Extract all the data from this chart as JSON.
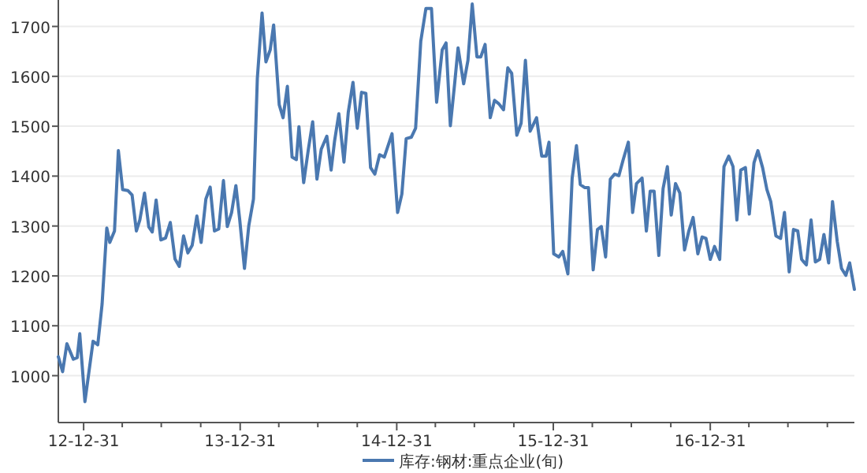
{
  "chart_data": {
    "type": "line",
    "x": [
      "2012-11-02",
      "2012-11-12",
      "2012-11-22",
      "2012-12-07",
      "2012-12-16",
      "2012-12-22",
      "2013-01-03",
      "2013-01-22",
      "2013-02-02",
      "2013-02-12",
      "2013-02-23",
      "2013-03-02",
      "2013-03-13",
      "2013-03-22",
      "2013-04-01",
      "2013-04-13",
      "2013-04-23",
      "2013-05-03",
      "2013-05-11",
      "2013-05-22",
      "2013-06-01",
      "2013-06-09",
      "2013-06-18",
      "2013-06-29",
      "2013-07-10",
      "2013-07-21",
      "2013-08-01",
      "2013-08-11",
      "2013-08-21",
      "2013-08-31",
      "2013-09-10",
      "2013-09-21",
      "2013-10-01",
      "2013-10-12",
      "2013-10-22",
      "2013-11-01",
      "2013-11-11",
      "2013-11-22",
      "2013-12-01",
      "2013-12-11",
      "2013-12-21",
      "2013-12-30",
      "2014-01-10",
      "2014-01-20",
      "2014-01-31",
      "2014-02-09",
      "2014-02-20",
      "2014-03-01",
      "2014-03-11",
      "2014-03-19",
      "2014-04-01",
      "2014-04-10",
      "2014-04-20",
      "2014-05-01",
      "2014-05-11",
      "2014-05-17",
      "2014-05-28",
      "2014-06-08",
      "2014-06-18",
      "2014-06-28",
      "2014-07-08",
      "2014-07-21",
      "2014-07-31",
      "2014-08-08",
      "2014-08-18",
      "2014-08-30",
      "2014-09-09",
      "2014-09-20",
      "2014-09-30",
      "2014-10-10",
      "2014-10-20",
      "2014-10-31",
      "2014-11-10",
      "2014-11-21",
      "2014-12-02",
      "2014-12-20",
      "2015-01-02",
      "2015-01-12",
      "2015-01-22",
      "2015-02-03",
      "2015-02-13",
      "2015-02-25",
      "2015-03-09",
      "2015-03-22",
      "2015-04-03",
      "2015-04-16",
      "2015-04-25",
      "2015-05-05",
      "2015-05-15",
      "2015-05-23",
      "2015-06-05",
      "2015-06-15",
      "2015-06-25",
      "2015-07-06",
      "2015-07-15",
      "2015-07-25",
      "2015-08-06",
      "2015-08-16",
      "2015-08-26",
      "2015-09-06",
      "2015-09-16",
      "2015-09-25",
      "2015-10-07",
      "2015-10-17",
      "2015-10-27",
      "2015-11-07",
      "2015-11-22",
      "2015-12-04",
      "2015-12-14",
      "2015-12-21",
      "2016-01-01",
      "2016-01-13",
      "2016-01-22",
      "2016-02-03",
      "2016-02-13",
      "2016-02-23",
      "2016-03-03",
      "2016-03-13",
      "2016-03-22",
      "2016-04-02",
      "2016-04-12",
      "2016-04-21",
      "2016-05-01",
      "2016-05-12",
      "2016-05-22",
      "2016-06-01",
      "2016-06-11",
      "2016-06-23",
      "2016-07-03",
      "2016-07-12",
      "2016-07-25",
      "2016-08-04",
      "2016-08-13",
      "2016-08-22",
      "2016-09-02",
      "2016-09-12",
      "2016-09-22",
      "2016-10-01",
      "2016-10-11",
      "2016-10-21",
      "2016-11-01",
      "2016-11-11",
      "2016-11-21",
      "2016-12-02",
      "2016-12-12",
      "2016-12-21",
      "2016-12-31",
      "2017-01-10",
      "2017-01-22",
      "2017-02-01",
      "2017-02-12",
      "2017-02-22",
      "2017-03-03",
      "2017-03-12",
      "2017-03-23",
      "2017-04-01",
      "2017-04-12",
      "2017-04-21",
      "2017-05-02",
      "2017-05-12",
      "2017-05-21",
      "2017-06-02",
      "2017-06-13",
      "2017-06-22",
      "2017-07-03",
      "2017-07-13",
      "2017-07-23",
      "2017-08-01",
      "2017-08-12",
      "2017-08-23",
      "2017-09-02",
      "2017-09-12",
      "2017-09-22",
      "2017-10-03",
      "2017-10-12",
      "2017-10-23",
      "2017-11-02",
      "2017-11-12",
      "2017-11-21",
      "2017-12-02"
    ],
    "series": [
      {
        "name": "库存:钢材:重点企业(旬)",
        "color": "#4a78b0",
        "values": [
          1038,
          1008,
          1064,
          1033,
          1036,
          1084,
          948,
          1069,
          1062,
          1143,
          1296,
          1267,
          1290,
          1451,
          1373,
          1371,
          1362,
          1290,
          1312,
          1366,
          1298,
          1288,
          1352,
          1272,
          1276,
          1307,
          1234,
          1219,
          1280,
          1246,
          1261,
          1320,
          1267,
          1354,
          1378,
          1290,
          1294,
          1391,
          1299,
          1327,
          1381,
          1312,
          1215,
          1300,
          1354,
          1596,
          1727,
          1629,
          1653,
          1703,
          1543,
          1517,
          1580,
          1438,
          1433,
          1499,
          1387,
          1454,
          1509,
          1394,
          1454,
          1480,
          1412,
          1470,
          1525,
          1428,
          1528,
          1588,
          1496,
          1568,
          1566,
          1417,
          1404,
          1443,
          1438,
          1485,
          1327,
          1364,
          1475,
          1478,
          1496,
          1670,
          1736,
          1736,
          1548,
          1653,
          1667,
          1501,
          1585,
          1657,
          1585,
          1632,
          1745,
          1639,
          1639,
          1664,
          1517,
          1552,
          1545,
          1533,
          1617,
          1606,
          1482,
          1506,
          1632,
          1490,
          1517,
          1440,
          1440,
          1468,
          1244,
          1238,
          1249,
          1204,
          1396,
          1461,
          1383,
          1377,
          1377,
          1212,
          1293,
          1299,
          1238,
          1394,
          1404,
          1401,
          1433,
          1468,
          1327,
          1385,
          1396,
          1290,
          1370,
          1370,
          1241,
          1375,
          1419,
          1322,
          1385,
          1366,
          1252,
          1290,
          1317,
          1244,
          1278,
          1275,
          1233,
          1259,
          1233,
          1419,
          1440,
          1419,
          1312,
          1412,
          1417,
          1324,
          1427,
          1451,
          1417,
          1373,
          1349,
          1280,
          1275,
          1327,
          1208,
          1293,
          1290,
          1233,
          1222,
          1312,
          1228,
          1233,
          1283,
          1226,
          1349,
          1269,
          1215,
          1201,
          1226,
          1173
        ]
      }
    ],
    "xlim": [
      "2012-11-02",
      "2017-12-02"
    ],
    "ylim": [
      906,
      1753
    ],
    "xticks": [
      {
        "value": "2012-12-31",
        "label": "12-12-31"
      },
      {
        "value": "2013-03-31",
        "label": null
      },
      {
        "value": "2013-06-30",
        "label": null
      },
      {
        "value": "2013-09-30",
        "label": null
      },
      {
        "value": "2013-12-31",
        "label": "13-12-31"
      },
      {
        "value": "2014-03-31",
        "label": null
      },
      {
        "value": "2014-06-30",
        "label": null
      },
      {
        "value": "2014-09-30",
        "label": null
      },
      {
        "value": "2014-12-31",
        "label": "14-12-31"
      },
      {
        "value": "2015-03-31",
        "label": null
      },
      {
        "value": "2015-06-30",
        "label": null
      },
      {
        "value": "2015-09-30",
        "label": null
      },
      {
        "value": "2015-12-31",
        "label": "15-12-31"
      },
      {
        "value": "2016-03-31",
        "label": null
      },
      {
        "value": "2016-06-30",
        "label": null
      },
      {
        "value": "2016-09-30",
        "label": null
      },
      {
        "value": "2016-12-31",
        "label": "16-12-31"
      },
      {
        "value": "2017-03-31",
        "label": null
      },
      {
        "value": "2017-06-30",
        "label": null
      },
      {
        "value": "2017-09-30",
        "label": null
      }
    ],
    "yticks": [
      1000,
      1100,
      1200,
      1300,
      1400,
      1500,
      1600,
      1700
    ],
    "grid": "y",
    "legend": "bottom"
  }
}
